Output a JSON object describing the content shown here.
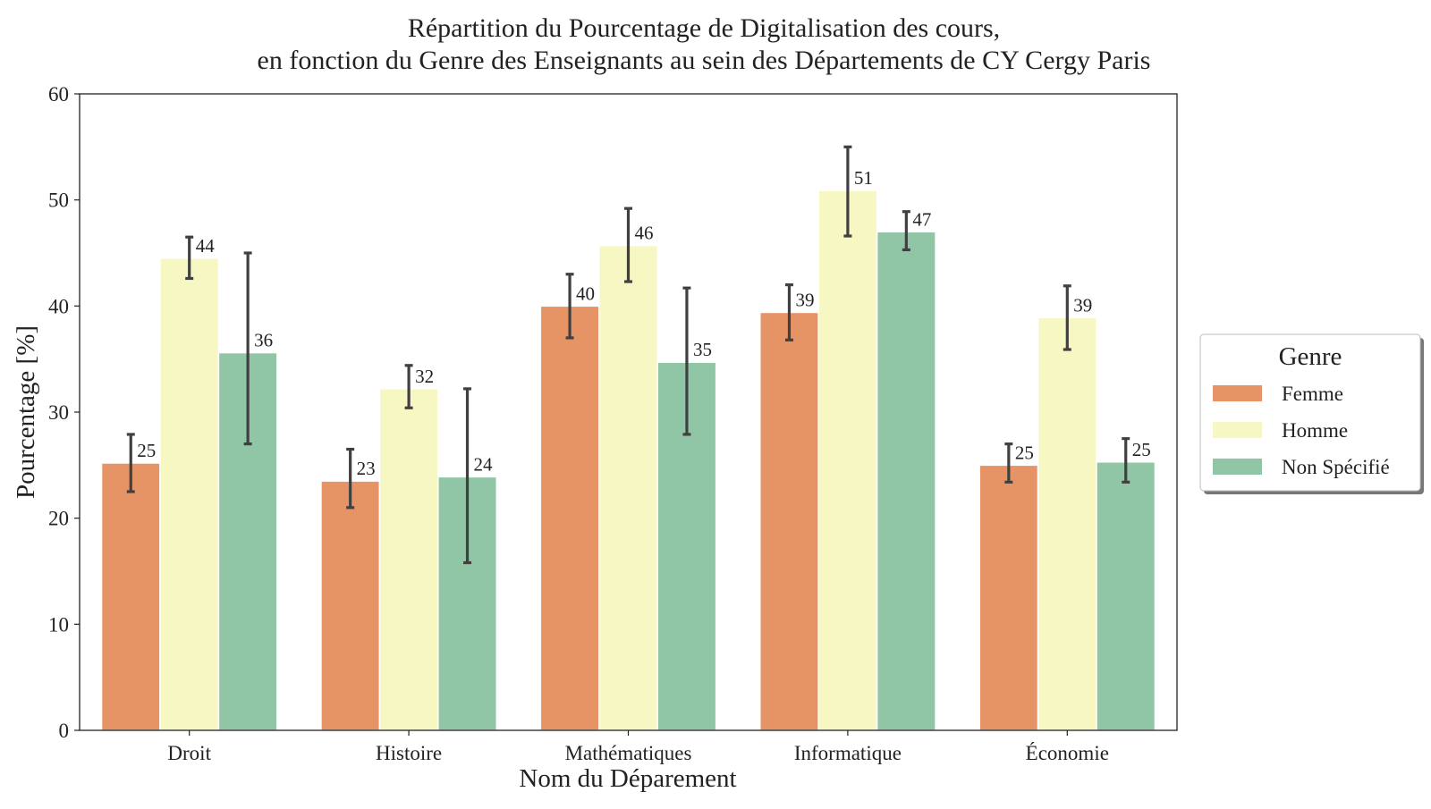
{
  "chart_data": {
    "type": "bar",
    "title_lines": [
      "Répartition du Pourcentage de Digitalisation des cours,",
      "en fonction du Genre des Enseignants au sein des Départements de CY Cergy Paris"
    ],
    "xlabel": "Nom du Déparement",
    "ylabel": "Pourcentage [%]",
    "ylim": [
      0,
      60
    ],
    "yticks": [
      0,
      10,
      20,
      30,
      40,
      50,
      60
    ],
    "grid": false,
    "categories": [
      "Droit",
      "Histoire",
      "Mathématiques",
      "Informatique",
      "Économie"
    ],
    "legend": {
      "title": "Genre",
      "placement": "right-outside"
    },
    "series": [
      {
        "name": "Femme",
        "color": "#e69466",
        "values": [
          25.2,
          23.5,
          40.0,
          39.4,
          25.0
        ],
        "err_low": [
          22.5,
          21.0,
          37.0,
          36.8,
          23.4
        ],
        "err_high": [
          27.9,
          26.5,
          43.0,
          42.0,
          27.0
        ],
        "labels": [
          "25",
          "23",
          "40",
          "39",
          "25"
        ]
      },
      {
        "name": "Homme",
        "color": "#f7f7c4",
        "values": [
          44.5,
          32.2,
          45.7,
          50.9,
          38.9
        ],
        "err_low": [
          42.6,
          30.4,
          42.3,
          46.6,
          35.9
        ],
        "err_high": [
          46.5,
          34.4,
          49.2,
          55.0,
          41.9
        ],
        "labels": [
          "44",
          "32",
          "46",
          "51",
          "39"
        ]
      },
      {
        "name": "Non Spécifié",
        "color": "#90c6a6",
        "values": [
          35.6,
          23.9,
          34.7,
          47.0,
          25.3
        ],
        "err_low": [
          27.0,
          15.8,
          27.9,
          45.3,
          23.4
        ],
        "err_high": [
          45.0,
          32.2,
          41.7,
          48.9,
          27.5
        ],
        "labels": [
          "36",
          "24",
          "35",
          "47",
          "25"
        ]
      }
    ],
    "errorbar_color": "#404040"
  }
}
